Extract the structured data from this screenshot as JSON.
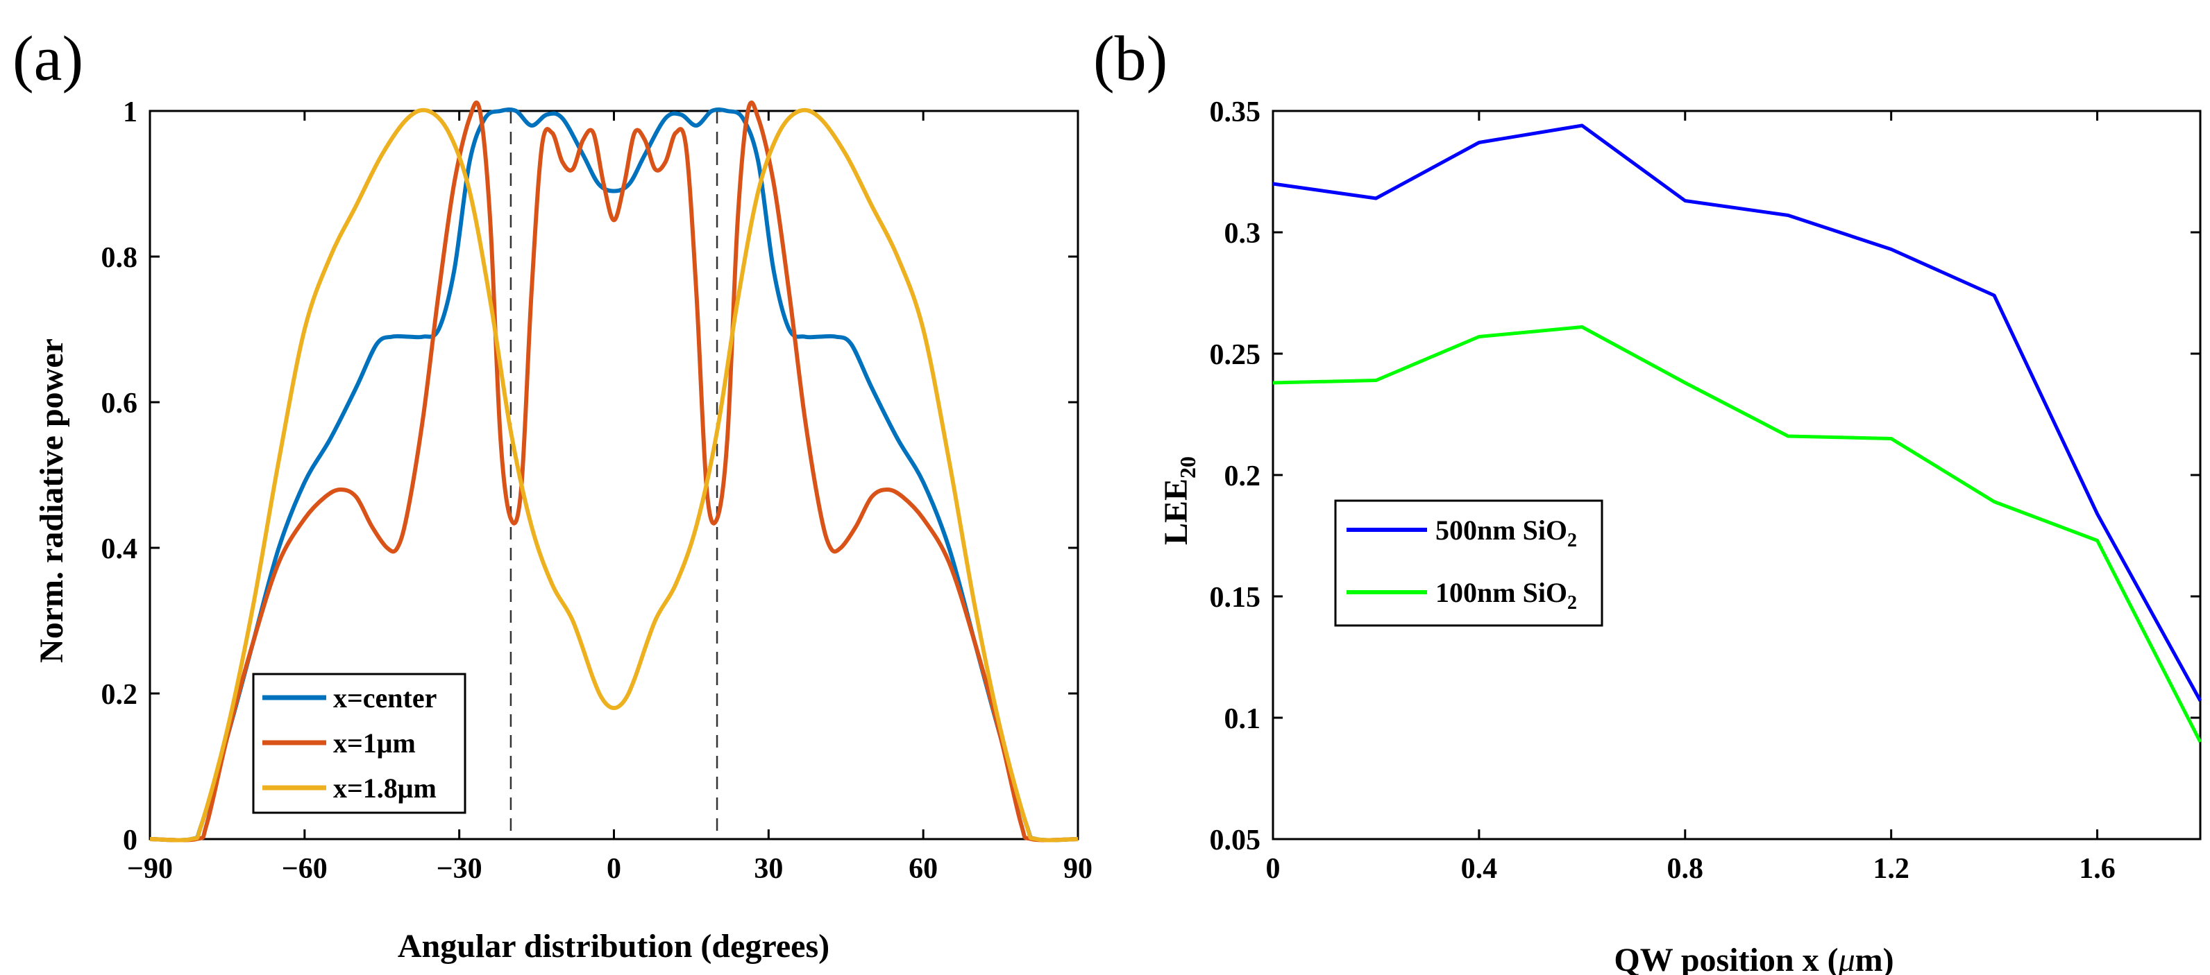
{
  "chart_data": [
    {
      "type": "line",
      "panel_label": "(a)",
      "xlabel": "Angular distribution (degrees)",
      "ylabel": "Norm. radiative power",
      "xlim": [
        -90,
        90
      ],
      "ylim": [
        0,
        1
      ],
      "xticks": [
        -90,
        -60,
        -30,
        0,
        30,
        60,
        90
      ],
      "xtick_labels": [
        "−90",
        "−60",
        "−30",
        "0",
        "30",
        "60",
        "90"
      ],
      "yticks": [
        0,
        0.2,
        0.4,
        0.6,
        0.8,
        1
      ],
      "ytick_labels": [
        "0",
        "0.2",
        "0.4",
        "0.6",
        "0.8",
        "1"
      ],
      "vlines": [
        -20,
        20
      ],
      "legend_position": "bottom-left",
      "series": [
        {
          "name": "x=center",
          "color": "#0072BD",
          "x": [
            -90,
            -82,
            -80,
            -75,
            -70,
            -65,
            -60,
            -55,
            -50,
            -46,
            -43,
            -40,
            -37,
            -34,
            -31,
            -28,
            -25,
            -22,
            -19,
            -16,
            -13,
            -10,
            -6,
            -3,
            0,
            3,
            6,
            10,
            13,
            16,
            19,
            22,
            25,
            28,
            31,
            34,
            37,
            40,
            43,
            46,
            50,
            55,
            60,
            65,
            70,
            75,
            80,
            82,
            90
          ],
          "y": [
            0,
            0,
            0.02,
            0.14,
            0.27,
            0.4,
            0.49,
            0.55,
            0.62,
            0.68,
            0.69,
            0.69,
            0.69,
            0.7,
            0.78,
            0.93,
            0.99,
            1.0,
            1.0,
            0.98,
            0.995,
            0.99,
            0.94,
            0.9,
            0.89,
            0.9,
            0.94,
            0.99,
            0.995,
            0.98,
            1.0,
            1.0,
            0.99,
            0.93,
            0.78,
            0.7,
            0.69,
            0.69,
            0.69,
            0.68,
            0.62,
            0.55,
            0.49,
            0.4,
            0.27,
            0.14,
            0.02,
            0,
            0
          ]
        },
        {
          "name": "x=1μm",
          "color": "#D95319",
          "x": [
            -90,
            -81,
            -79,
            -75,
            -70,
            -65,
            -60,
            -56,
            -53,
            -50,
            -47,
            -44,
            -42,
            -40,
            -37,
            -34,
            -31,
            -28,
            -26,
            -24,
            -22,
            -20,
            -18,
            -16,
            -14,
            -12,
            -10,
            -8,
            -6,
            -4,
            -2,
            0,
            2,
            4,
            6,
            8,
            10,
            12,
            14,
            16,
            18,
            20,
            22,
            24,
            26,
            28,
            31,
            34,
            37,
            40,
            42,
            44,
            47,
            50,
            53,
            56,
            60,
            65,
            70,
            75,
            79,
            81,
            90
          ],
          "y": [
            0,
            0,
            0.02,
            0.14,
            0.27,
            0.38,
            0.44,
            0.47,
            0.48,
            0.47,
            0.43,
            0.4,
            0.4,
            0.45,
            0.58,
            0.75,
            0.9,
            0.99,
            1.0,
            0.85,
            0.55,
            0.44,
            0.48,
            0.75,
            0.95,
            0.97,
            0.93,
            0.92,
            0.96,
            0.97,
            0.9,
            0.85,
            0.9,
            0.97,
            0.96,
            0.92,
            0.93,
            0.97,
            0.95,
            0.75,
            0.48,
            0.44,
            0.55,
            0.85,
            1.0,
            0.99,
            0.9,
            0.75,
            0.58,
            0.45,
            0.4,
            0.4,
            0.43,
            0.47,
            0.48,
            0.47,
            0.44,
            0.38,
            0.27,
            0.14,
            0.02,
            0,
            0
          ]
        },
        {
          "name": "x=1.8μm",
          "color": "#EDB120",
          "x": [
            -90,
            -82,
            -80,
            -75,
            -70,
            -65,
            -60,
            -55,
            -50,
            -45,
            -40,
            -36,
            -32,
            -28,
            -24,
            -20,
            -16,
            -12,
            -8,
            -4,
            -2,
            0,
            2,
            4,
            8,
            12,
            16,
            20,
            24,
            28,
            32,
            36,
            40,
            45,
            50,
            55,
            60,
            65,
            70,
            75,
            80,
            82,
            90
          ],
          "y": [
            0,
            0,
            0.02,
            0.15,
            0.32,
            0.52,
            0.7,
            0.8,
            0.87,
            0.94,
            0.99,
            1.0,
            0.97,
            0.89,
            0.74,
            0.56,
            0.43,
            0.35,
            0.3,
            0.22,
            0.19,
            0.18,
            0.19,
            0.22,
            0.3,
            0.35,
            0.43,
            0.56,
            0.74,
            0.89,
            0.97,
            1.0,
            0.99,
            0.94,
            0.87,
            0.8,
            0.7,
            0.52,
            0.32,
            0.15,
            0.02,
            0,
            0
          ]
        }
      ]
    },
    {
      "type": "line",
      "panel_label": "(b)",
      "xlabel_main": "QW position x (",
      "xlabel_mu": "μ",
      "xlabel_unit": "m)",
      "ylabel_main": "LEE",
      "ylabel_sub": "20",
      "xlim": [
        0,
        1.8
      ],
      "ylim": [
        0.05,
        0.35
      ],
      "xticks": [
        0,
        0.4,
        0.8,
        1.2,
        1.6
      ],
      "xtick_labels": [
        "0",
        "0.4",
        "0.8",
        "1.2",
        "1.6"
      ],
      "yticks": [
        0.05,
        0.1,
        0.15,
        0.2,
        0.25,
        0.3,
        0.35
      ],
      "ytick_labels": [
        "0.05",
        "0.1",
        "0.15",
        "0.2",
        "0.25",
        "0.3",
        "0.35"
      ],
      "legend_position": "middle-left",
      "series": [
        {
          "name": "500nm SiO",
          "name_sub": "2",
          "color": "#0000FF",
          "x": [
            0,
            0.2,
            0.4,
            0.6,
            0.8,
            1.0,
            1.2,
            1.4,
            1.6,
            1.8
          ],
          "y": [
            0.32,
            0.314,
            0.337,
            0.344,
            0.313,
            0.307,
            0.293,
            0.274,
            0.184,
            0.107
          ]
        },
        {
          "name": "100nm SiO",
          "name_sub": "2",
          "color": "#00FF00",
          "x": [
            0,
            0.2,
            0.4,
            0.6,
            0.8,
            1.0,
            1.2,
            1.4,
            1.6,
            1.8
          ],
          "y": [
            0.238,
            0.239,
            0.257,
            0.261,
            0.238,
            0.216,
            0.215,
            0.189,
            0.173,
            0.09
          ]
        }
      ]
    }
  ]
}
